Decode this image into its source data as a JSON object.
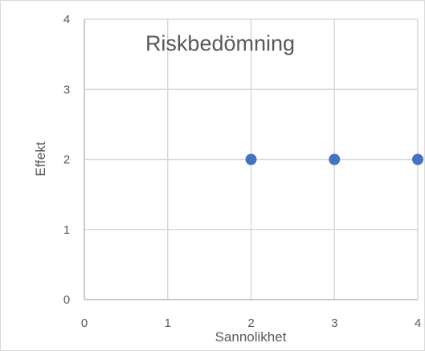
{
  "chart_data": {
    "type": "scatter",
    "title": "Riskbedömning",
    "xlabel": "Sannolikhet",
    "ylabel": "Effekt",
    "xlim": [
      0,
      4
    ],
    "ylim": [
      0,
      4
    ],
    "x_ticks": [
      "0",
      "1",
      "2",
      "3",
      "4"
    ],
    "y_ticks": [
      "0",
      "1",
      "2",
      "3",
      "4"
    ],
    "grid": true,
    "legend": "none",
    "series": [
      {
        "color": "#4472c4",
        "points": [
          {
            "x": 2,
            "y": 2
          },
          {
            "x": 3,
            "y": 2
          },
          {
            "x": 4,
            "y": 2
          }
        ]
      }
    ]
  }
}
